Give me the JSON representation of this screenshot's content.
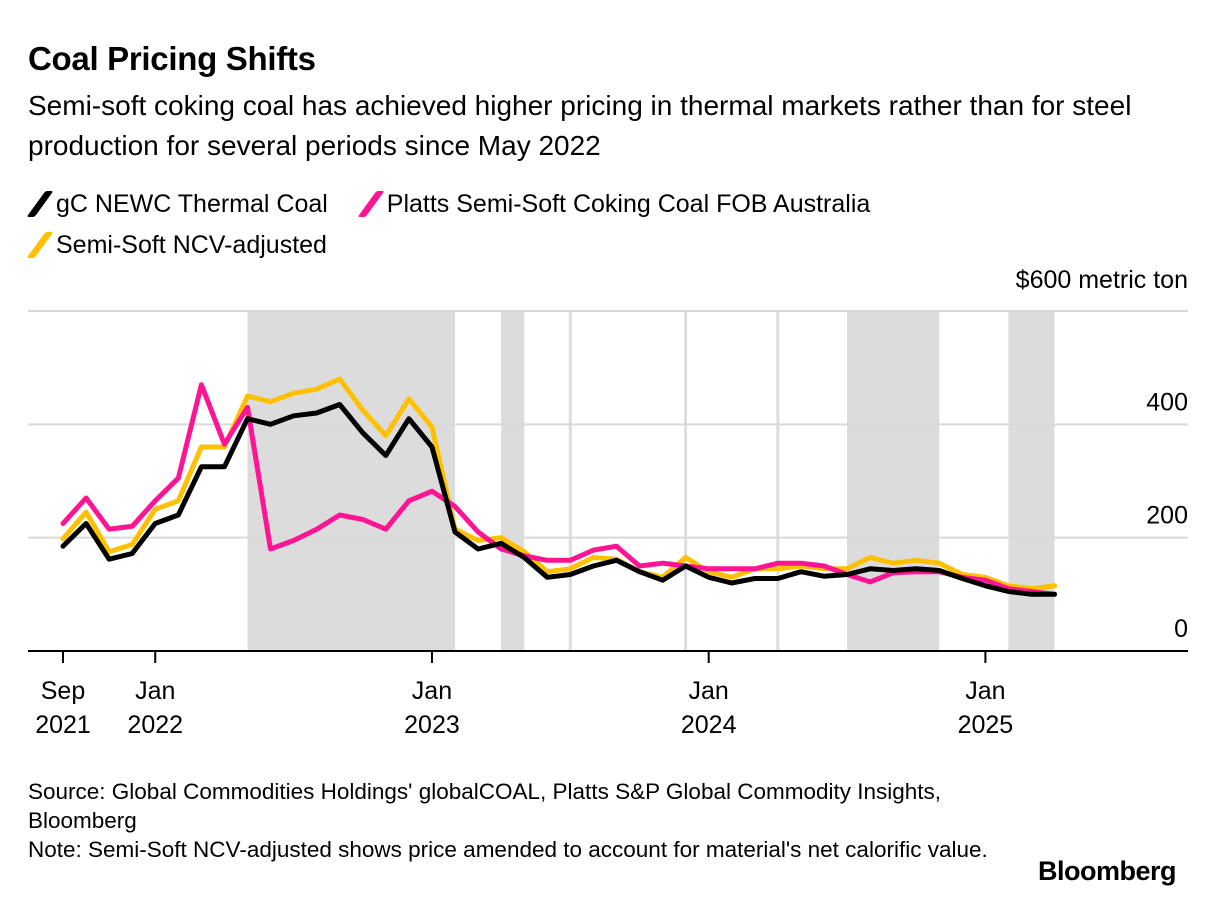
{
  "header": {
    "title": "Coal Pricing Shifts",
    "subtitle": "Semi-soft coking coal has achieved higher pricing in thermal markets rather than for steel production for several periods since May 2022"
  },
  "footer": {
    "source": "Source: Global Commodities Holdings' globalCOAL, Platts S&P Global Commodity Insights, Bloomberg",
    "note": "Note: Semi-Soft NCV-adjusted shows price amended to account for material's net calorific value.",
    "brand": "Bloomberg"
  },
  "chart_data": {
    "type": "line",
    "unit_label": "$600 metric ton",
    "ylim": [
      0,
      600
    ],
    "y_ticks": [
      {
        "value": 0,
        "label": "0"
      },
      {
        "value": 200,
        "label": "200"
      },
      {
        "value": 400,
        "label": "400"
      }
    ],
    "x_ticks": [
      {
        "date": "2021-09",
        "line1": "Sep",
        "line2": "2021"
      },
      {
        "date": "2022-01",
        "line1": "Jan",
        "line2": "2022"
      },
      {
        "date": "2023-01",
        "line1": "Jan",
        "line2": "2023"
      },
      {
        "date": "2024-01",
        "line1": "Jan",
        "line2": "2024"
      },
      {
        "date": "2025-01",
        "line1": "Jan",
        "line2": "2025"
      }
    ],
    "grid": true,
    "legend_position": "top-left",
    "shaded_periods": [
      [
        "2022-05",
        "2023-02"
      ],
      [
        "2023-04",
        "2023-05"
      ],
      [
        "2024-07",
        "2024-11"
      ],
      [
        "2025-02",
        "2025-04"
      ]
    ],
    "vertical_markers": [
      "2023-07",
      "2023-12",
      "2024-04"
    ],
    "x": [
      "2021-09",
      "2021-10",
      "2021-11",
      "2021-12",
      "2022-01",
      "2022-02",
      "2022-03",
      "2022-04",
      "2022-05",
      "2022-06",
      "2022-07",
      "2022-08",
      "2022-09",
      "2022-10",
      "2022-11",
      "2022-12",
      "2023-01",
      "2023-02",
      "2023-03",
      "2023-04",
      "2023-05",
      "2023-06",
      "2023-07",
      "2023-08",
      "2023-09",
      "2023-10",
      "2023-11",
      "2023-12",
      "2024-01",
      "2024-02",
      "2024-03",
      "2024-04",
      "2024-05",
      "2024-06",
      "2024-07",
      "2024-08",
      "2024-09",
      "2024-10",
      "2024-11",
      "2024-12",
      "2025-01",
      "2025-02",
      "2025-03",
      "2025-04"
    ],
    "series": [
      {
        "name": "Semi-Soft NCV-adjusted",
        "color": "#ffc000",
        "values": [
          198,
          245,
          175,
          188,
          250,
          265,
          360,
          360,
          450,
          440,
          455,
          462,
          480,
          425,
          380,
          445,
          395,
          215,
          195,
          200,
          175,
          140,
          145,
          165,
          162,
          140,
          130,
          165,
          140,
          130,
          145,
          145,
          150,
          145,
          145,
          165,
          155,
          160,
          155,
          135,
          130,
          115,
          110,
          115
        ]
      },
      {
        "name": "Platts Semi-Soft Coking Coal FOB Australia",
        "color": "#ff1493",
        "values": [
          225,
          270,
          215,
          220,
          265,
          305,
          470,
          365,
          430,
          180,
          195,
          215,
          240,
          232,
          215,
          265,
          282,
          255,
          210,
          180,
          168,
          160,
          160,
          178,
          185,
          150,
          155,
          150,
          145,
          145,
          145,
          155,
          155,
          150,
          135,
          122,
          138,
          140,
          140,
          130,
          125,
          110,
          105,
          100
        ]
      },
      {
        "name": "gC NEWC Thermal Coal",
        "color": "#000000",
        "values": [
          185,
          225,
          162,
          172,
          225,
          240,
          325,
          325,
          410,
          400,
          415,
          420,
          435,
          385,
          345,
          410,
          360,
          210,
          180,
          190,
          165,
          130,
          135,
          150,
          160,
          140,
          125,
          150,
          130,
          120,
          128,
          128,
          140,
          132,
          135,
          145,
          142,
          145,
          142,
          128,
          115,
          105,
          100,
          100
        ]
      }
    ]
  }
}
